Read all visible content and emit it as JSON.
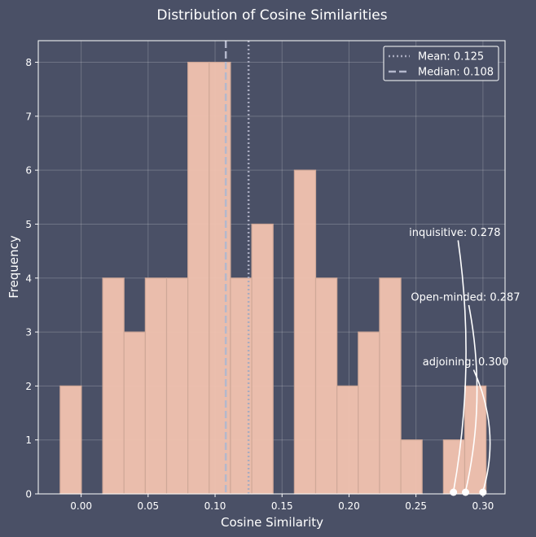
{
  "chart_data": {
    "type": "bar",
    "title": "Distribution of Cosine Similarities",
    "xlabel": "Cosine Similarity",
    "ylabel": "Frequency",
    "xlim": [
      -0.032,
      0.3165
    ],
    "ylim": [
      0,
      8.4
    ],
    "xticks": [
      0.0,
      0.05,
      0.1,
      0.15,
      0.2,
      0.25,
      0.3
    ],
    "xtick_labels": [
      "0.00",
      "0.05",
      "0.10",
      "0.15",
      "0.20",
      "0.25",
      "0.30"
    ],
    "yticks": [
      0,
      1,
      2,
      3,
      4,
      5,
      6,
      7,
      8
    ],
    "ytick_labels": [
      "0",
      "1",
      "2",
      "3",
      "4",
      "5",
      "6",
      "7",
      "8"
    ],
    "grid": true,
    "legend_position": "top-right",
    "bins": [
      {
        "x0": -0.0157,
        "x1": 0.0002,
        "count": 2
      },
      {
        "x0": 0.0002,
        "x1": 0.0161,
        "count": 0
      },
      {
        "x0": 0.0161,
        "x1": 0.032,
        "count": 4
      },
      {
        "x0": 0.032,
        "x1": 0.0479,
        "count": 3
      },
      {
        "x0": 0.0479,
        "x1": 0.0638,
        "count": 4
      },
      {
        "x0": 0.0638,
        "x1": 0.0797,
        "count": 4
      },
      {
        "x0": 0.0797,
        "x1": 0.0956,
        "count": 8
      },
      {
        "x0": 0.0956,
        "x1": 0.1115,
        "count": 8
      },
      {
        "x0": 0.1115,
        "x1": 0.1274,
        "count": 4
      },
      {
        "x0": 0.1274,
        "x1": 0.1433,
        "count": 5
      },
      {
        "x0": 0.1433,
        "x1": 0.1592,
        "count": 0
      },
      {
        "x0": 0.1592,
        "x1": 0.1751,
        "count": 6
      },
      {
        "x0": 0.1751,
        "x1": 0.191,
        "count": 4
      },
      {
        "x0": 0.191,
        "x1": 0.2069,
        "count": 2
      },
      {
        "x0": 0.2069,
        "x1": 0.2228,
        "count": 3
      },
      {
        "x0": 0.2228,
        "x1": 0.2387,
        "count": 4
      },
      {
        "x0": 0.2387,
        "x1": 0.2546,
        "count": 1
      },
      {
        "x0": 0.2546,
        "x1": 0.2705,
        "count": 0
      },
      {
        "x0": 0.2705,
        "x1": 0.2864,
        "count": 1
      },
      {
        "x0": 0.2864,
        "x1": 0.3023,
        "count": 2
      }
    ],
    "mean": {
      "value": 0.125,
      "label": "Mean: 0.125"
    },
    "median": {
      "value": 0.108,
      "label": "Median: 0.108"
    },
    "annotations": [
      {
        "text": "inquisitive: 0.278",
        "x": 0.278,
        "y": 0,
        "text_x": 0.279,
        "text_y": 4.85
      },
      {
        "text": "Open-minded: 0.287",
        "x": 0.287,
        "y": 0,
        "text_x": 0.287,
        "text_y": 3.65
      },
      {
        "text": "adjoining: 0.300",
        "x": 0.3,
        "y": 0,
        "text_x": 0.287,
        "text_y": 2.45
      }
    ]
  },
  "colors": {
    "background": "#4a5066",
    "bar_fill": "#f2c3b0",
    "bar_stroke": "#cfa898",
    "mean_line": "#a9abbf",
    "median_line": "#b4b8cc",
    "text": "#ffffff"
  }
}
